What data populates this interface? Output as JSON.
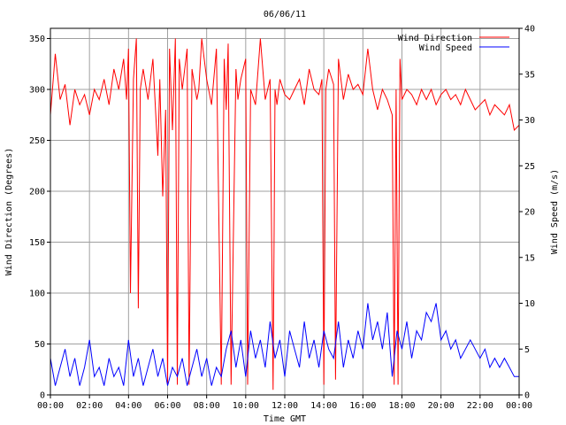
{
  "chart_data": {
    "type": "line",
    "title": "06/06/11",
    "xlabel": "Time GMT",
    "ylabel_left": "Wind Direction (Degrees)",
    "ylabel_right": "Wind Speed (m/s)",
    "xlim": [
      0,
      24
    ],
    "ylim_left": [
      0,
      360
    ],
    "ylim_right": [
      0,
      40
    ],
    "grid": true,
    "legend_position": "top-right",
    "x_tick_labels": [
      "00:00",
      "02:00",
      "04:00",
      "06:00",
      "08:00",
      "10:00",
      "12:00",
      "14:00",
      "16:00",
      "18:00",
      "20:00",
      "22:00",
      "00:00"
    ],
    "y_left_tick_labels": [
      "0",
      "50",
      "100",
      "150",
      "200",
      "250",
      "300",
      "350"
    ],
    "y_right_tick_labels": [
      "0",
      "5",
      "10",
      "15",
      "20",
      "25",
      "30",
      "35",
      "40"
    ],
    "series": [
      {
        "name": "Wind Direction",
        "axis": "left",
        "color": "#ff0000",
        "x": [
          0.0,
          0.25,
          0.5,
          0.75,
          1.0,
          1.25,
          1.5,
          1.75,
          2.0,
          2.25,
          2.5,
          2.75,
          3.0,
          3.25,
          3.5,
          3.75,
          3.9,
          4.0,
          4.1,
          4.25,
          4.4,
          4.5,
          4.6,
          4.75,
          5.0,
          5.25,
          5.5,
          5.6,
          5.75,
          5.9,
          6.0,
          6.1,
          6.25,
          6.4,
          6.5,
          6.6,
          6.75,
          7.0,
          7.1,
          7.25,
          7.5,
          7.6,
          7.75,
          8.0,
          8.25,
          8.5,
          8.75,
          8.9,
          9.0,
          9.1,
          9.25,
          9.5,
          9.6,
          9.75,
          10.0,
          10.1,
          10.25,
          10.5,
          10.75,
          11.0,
          11.25,
          11.4,
          11.5,
          11.6,
          11.75,
          12.0,
          12.25,
          12.5,
          12.75,
          13.0,
          13.25,
          13.5,
          13.75,
          13.9,
          14.0,
          14.1,
          14.25,
          14.5,
          14.6,
          14.75,
          15.0,
          15.25,
          15.5,
          15.75,
          16.0,
          16.25,
          16.5,
          16.75,
          17.0,
          17.25,
          17.5,
          17.6,
          17.7,
          17.8,
          17.9,
          18.0,
          18.25,
          18.5,
          18.75,
          19.0,
          19.25,
          19.5,
          19.75,
          20.0,
          20.25,
          20.5,
          20.75,
          21.0,
          21.25,
          21.5,
          21.75,
          22.0,
          22.25,
          22.5,
          22.75,
          23.0,
          23.25,
          23.5,
          23.75,
          24.0
        ],
        "values": [
          275,
          335,
          290,
          305,
          265,
          300,
          285,
          295,
          275,
          300,
          290,
          310,
          285,
          320,
          300,
          330,
          290,
          340,
          100,
          310,
          350,
          85,
          300,
          320,
          290,
          330,
          235,
          310,
          195,
          280,
          10,
          340,
          260,
          350,
          10,
          330,
          300,
          340,
          10,
          320,
          290,
          300,
          350,
          310,
          285,
          340,
          10,
          330,
          280,
          345,
          10,
          320,
          290,
          310,
          330,
          10,
          300,
          285,
          350,
          290,
          310,
          5,
          300,
          285,
          310,
          295,
          290,
          300,
          310,
          285,
          320,
          300,
          295,
          310,
          10,
          300,
          320,
          305,
          15,
          330,
          290,
          315,
          300,
          305,
          295,
          340,
          300,
          280,
          300,
          290,
          275,
          10,
          300,
          10,
          330,
          290,
          300,
          295,
          285,
          300,
          290,
          300,
          285,
          295,
          300,
          290,
          295,
          285,
          300,
          290,
          280,
          285,
          290,
          275,
          285,
          280,
          275,
          285,
          260,
          265
        ]
      },
      {
        "name": "Wind Speed",
        "axis": "right",
        "color": "#0000ff",
        "x": [
          0.0,
          0.25,
          0.5,
          0.75,
          1.0,
          1.25,
          1.5,
          1.75,
          2.0,
          2.25,
          2.5,
          2.75,
          3.0,
          3.25,
          3.5,
          3.75,
          4.0,
          4.25,
          4.5,
          4.75,
          5.0,
          5.25,
          5.5,
          5.75,
          6.0,
          6.25,
          6.5,
          6.75,
          7.0,
          7.25,
          7.5,
          7.75,
          8.0,
          8.25,
          8.5,
          8.75,
          9.0,
          9.25,
          9.5,
          9.75,
          10.0,
          10.25,
          10.5,
          10.75,
          11.0,
          11.25,
          11.5,
          11.75,
          12.0,
          12.25,
          12.5,
          12.75,
          13.0,
          13.25,
          13.5,
          13.75,
          14.0,
          14.25,
          14.5,
          14.75,
          15.0,
          15.25,
          15.5,
          15.75,
          16.0,
          16.25,
          16.5,
          16.75,
          17.0,
          17.25,
          17.5,
          17.75,
          18.0,
          18.25,
          18.5,
          18.75,
          19.0,
          19.25,
          19.5,
          19.75,
          20.0,
          20.25,
          20.5,
          20.75,
          21.0,
          21.25,
          21.5,
          21.75,
          22.0,
          22.25,
          22.5,
          22.75,
          23.0,
          23.25,
          23.5,
          23.75,
          24.0
        ],
        "values": [
          4,
          1,
          3,
          5,
          2,
          4,
          1,
          3,
          6,
          2,
          3,
          1,
          4,
          2,
          3,
          1,
          6,
          2,
          4,
          1,
          3,
          5,
          2,
          4,
          1,
          3,
          2,
          4,
          1,
          3,
          5,
          2,
          4,
          1,
          3,
          2,
          5,
          7,
          3,
          6,
          2,
          7,
          4,
          6,
          3,
          8,
          4,
          6,
          2,
          7,
          5,
          3,
          8,
          4,
          6,
          3,
          7,
          5,
          4,
          8,
          3,
          6,
          4,
          7,
          5,
          10,
          6,
          8,
          5,
          9,
          2,
          7,
          5,
          8,
          4,
          7,
          6,
          9,
          8,
          10,
          6,
          7,
          5,
          6,
          4,
          5,
          6,
          5,
          4,
          5,
          3,
          4,
          3,
          4,
          3,
          2,
          2
        ]
      }
    ]
  }
}
